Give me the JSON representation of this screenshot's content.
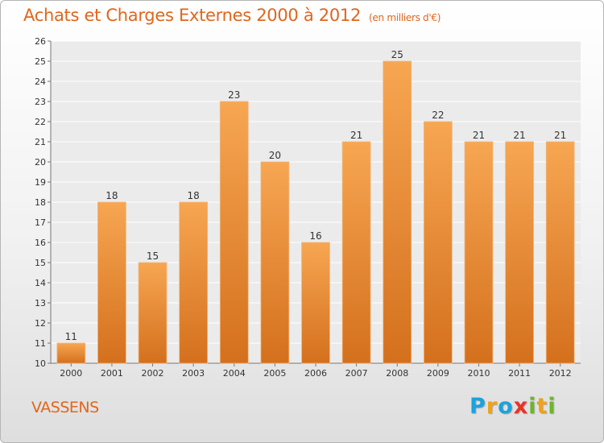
{
  "header": {
    "title": "Achats et Charges Externes 2000 à 2012",
    "subtitle": "(en milliers d'€)"
  },
  "footer": {
    "commune": "VASSENS",
    "brand": "Proxiti"
  },
  "colors": {
    "title": "#e0661d",
    "bar_top": "#f7a652",
    "bar_bottom": "#d4701d",
    "brand_blue": "#1aa3dc",
    "brand_orange": "#f0a21a",
    "brand_red": "#e8332a",
    "brand_green": "#6cb52d"
  },
  "chart_data": {
    "type": "bar",
    "categories": [
      "2000",
      "2001",
      "2002",
      "2003",
      "2004",
      "2005",
      "2006",
      "2007",
      "2008",
      "2009",
      "2010",
      "2011",
      "2012"
    ],
    "values": [
      11,
      18,
      15,
      18,
      23,
      20,
      16,
      21,
      25,
      22,
      21,
      21,
      21
    ],
    "ylim": [
      10,
      26
    ],
    "yticks": [
      10,
      11,
      12,
      13,
      14,
      15,
      16,
      17,
      18,
      19,
      20,
      21,
      22,
      23,
      24,
      25,
      26
    ],
    "grid": true,
    "data_labels": true
  }
}
